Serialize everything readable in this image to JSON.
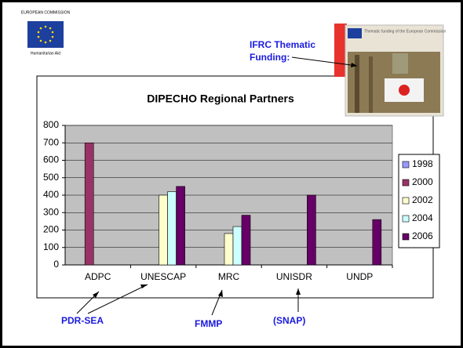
{
  "header": {
    "org": "EUROPEAN COMMISSION",
    "dept": "Humanitarian Aid"
  },
  "photo": {
    "caption": "Thematic funding of the European Commission"
  },
  "callouts": [
    {
      "text": "IFRC Thematic Funding:"
    },
    {
      "text": "PDR-SEA"
    },
    {
      "text": "FMMP"
    },
    {
      "text": "(SNAP)"
    }
  ],
  "chart_data": {
    "type": "bar",
    "title": "DIPECHO Regional Partners",
    "categories": [
      "ADPC",
      "UNESCAP",
      "MRC",
      "UNISDR",
      "UNDP"
    ],
    "series": [
      {
        "name": "1998",
        "color": "#9999ff",
        "values": [
          null,
          null,
          null,
          null,
          null
        ]
      },
      {
        "name": "2000",
        "color": "#993366",
        "values": [
          700,
          null,
          null,
          null,
          null
        ]
      },
      {
        "name": "2002",
        "color": "#ffffcc",
        "values": [
          null,
          400,
          180,
          null,
          null
        ]
      },
      {
        "name": "2004",
        "color": "#ccffff",
        "values": [
          null,
          420,
          220,
          null,
          null
        ]
      },
      {
        "name": "2006",
        "color": "#660066",
        "values": [
          null,
          450,
          285,
          400,
          260
        ]
      }
    ],
    "ylim": [
      0,
      800
    ],
    "yticks": [
      0,
      100,
      200,
      300,
      400,
      500,
      600,
      700,
      800
    ],
    "grid": true,
    "plot_background": "#c0c0c0",
    "legend": "right"
  }
}
